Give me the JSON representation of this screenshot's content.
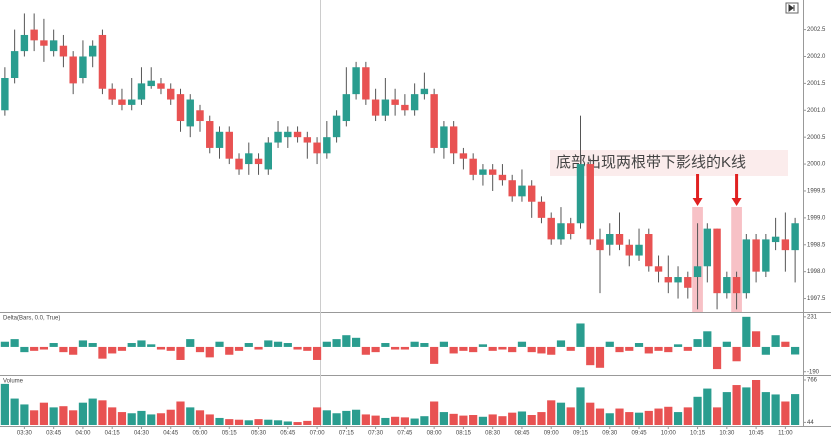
{
  "chart_data": [
    {
      "type": "candlestick",
      "categories": [
        null,
        null,
        "03:30",
        null,
        null,
        "03:45",
        null,
        null,
        "04:00",
        null,
        null,
        "04:15",
        null,
        null,
        "04:30",
        null,
        null,
        "04:45",
        null,
        null,
        "05:00",
        null,
        null,
        "05:15",
        null,
        null,
        "05:30",
        null,
        null,
        "05:45",
        null,
        null,
        "07:00",
        null,
        null,
        "07:15",
        null,
        null,
        "07:30",
        null,
        null,
        "07:45",
        null,
        null,
        "08:00",
        null,
        null,
        "08:15",
        null,
        null,
        "08:30",
        null,
        null,
        "08:45",
        null,
        null,
        "09:00",
        null,
        null,
        "09:15",
        null,
        null,
        "09:30",
        null,
        null,
        "09:45",
        null,
        null,
        "10:00",
        null,
        null,
        "10:15",
        null,
        null,
        "10:30",
        null,
        null,
        "10:45",
        null,
        null,
        "11:00",
        null
      ],
      "open": [
        2001.0,
        2001.6,
        2002.1,
        2002.5,
        2002.3,
        2002.1,
        2002.2,
        2002.0,
        2001.6,
        2002.0,
        2002.4,
        2001.4,
        2001.2,
        2001.1,
        2001.2,
        2001.45,
        2001.5,
        2001.4,
        2001.3,
        2000.7,
        2001.0,
        2000.8,
        2000.3,
        2000.6,
        2000.1,
        2000.0,
        2000.1,
        1999.9,
        2000.4,
        2000.5,
        2000.6,
        2000.5,
        2000.4,
        2000.2,
        2000.5,
        2000.8,
        2001.3,
        2001.8,
        2001.2,
        2000.9,
        2001.2,
        2001.1,
        2001.0,
        2001.3,
        2001.3,
        2000.3,
        2000.7,
        2000.2,
        2000.1,
        1999.8,
        1999.9,
        1999.8,
        1999.7,
        1999.4,
        1999.6,
        1999.3,
        1999.0,
        1998.6,
        1998.9,
        1998.9,
        2000.0,
        1998.6,
        1998.5,
        1998.7,
        1998.5,
        1998.3,
        1998.7,
        1998.1,
        1997.9,
        1997.8,
        1997.9,
        1997.9,
        1998.1,
        1998.8,
        1997.6,
        1997.9,
        1997.6,
        1998.6,
        1998.0,
        1998.55,
        1998.6,
        1998.4
      ],
      "high": [
        2001.8,
        2002.5,
        2002.8,
        2002.8,
        2002.7,
        2002.5,
        2002.4,
        2002.1,
        2002.3,
        2002.3,
        2002.5,
        2001.5,
        2001.4,
        2001.6,
        2001.8,
        2001.8,
        2001.6,
        2001.5,
        2001.4,
        2001.3,
        2001.1,
        2000.9,
        2000.7,
        2000.7,
        2000.2,
        2000.4,
        2000.2,
        2000.5,
        2000.8,
        2000.7,
        2000.7,
        2000.6,
        2000.5,
        2000.8,
        2001.0,
        2001.8,
        2001.9,
        2001.9,
        2001.4,
        2001.6,
        2001.4,
        2001.3,
        2001.5,
        2001.7,
        2001.4,
        2000.8,
        2000.8,
        2000.3,
        2000.2,
        2000.0,
        2000.0,
        2000.0,
        1999.8,
        1999.9,
        1999.7,
        1999.4,
        1999.1,
        1999.2,
        1999.0,
        2000.9,
        2000.1,
        1998.8,
        1998.9,
        1999.1,
        1998.6,
        1998.8,
        1998.8,
        1998.3,
        1998.3,
        1998.1,
        1998.0,
        1998.9,
        1998.9,
        1998.8,
        1998.0,
        1998.0,
        1998.7,
        1998.7,
        1998.7,
        1999.0,
        1999.1,
        1999.0
      ],
      "low": [
        2000.9,
        2001.5,
        2002.0,
        2002.1,
        2001.9,
        2002.0,
        2001.8,
        2001.3,
        2001.5,
        2001.8,
        2001.3,
        2001.1,
        2001.0,
        2001.0,
        2001.1,
        2001.4,
        2001.3,
        2001.1,
        2000.6,
        2000.5,
        2000.6,
        2000.2,
        2000.1,
        2000.0,
        1999.8,
        1999.8,
        1999.8,
        1999.8,
        2000.3,
        2000.3,
        2000.4,
        2000.1,
        2000.0,
        2000.1,
        2000.4,
        2000.7,
        2001.2,
        2001.1,
        2000.8,
        2000.8,
        2000.9,
        2000.9,
        2000.9,
        2001.2,
        2000.2,
        2000.1,
        2000.0,
        1999.9,
        1999.7,
        1999.6,
        1999.5,
        1999.6,
        1999.3,
        1999.3,
        1999.0,
        1998.9,
        1998.5,
        1998.5,
        1998.6,
        1998.8,
        1998.5,
        1997.6,
        1998.3,
        1998.4,
        1998.1,
        1998.2,
        1998.0,
        1997.8,
        1997.6,
        1997.5,
        1997.5,
        1997.3,
        1997.8,
        1997.3,
        1997.5,
        1997.3,
        1997.5,
        1997.8,
        1997.9,
        1998.4,
        1998.0,
        1997.8
      ],
      "close": [
        2001.6,
        2002.1,
        2002.4,
        2002.3,
        2002.2,
        2002.3,
        2002.0,
        2001.5,
        2002.0,
        2002.2,
        2001.4,
        2001.2,
        2001.1,
        2001.2,
        2001.5,
        2001.55,
        2001.4,
        2001.2,
        2000.8,
        2001.2,
        2000.8,
        2000.3,
        2000.6,
        2000.1,
        1999.9,
        2000.2,
        2000.0,
        2000.4,
        2000.6,
        2000.6,
        2000.5,
        2000.4,
        2000.2,
        2000.5,
        2000.9,
        2001.3,
        2001.8,
        2001.2,
        2000.9,
        2001.2,
        2001.1,
        2001.0,
        2001.3,
        2001.4,
        2000.3,
        2000.7,
        2000.2,
        2000.1,
        1999.8,
        1999.9,
        1999.8,
        1999.7,
        1999.4,
        1999.6,
        1999.3,
        1999.0,
        1998.6,
        1998.9,
        1998.7,
        2000.0,
        1998.6,
        1998.4,
        1998.7,
        1998.5,
        1998.3,
        1998.5,
        1998.1,
        1998.0,
        1997.8,
        1997.9,
        1997.7,
        1998.1,
        1998.8,
        1997.6,
        1997.9,
        1997.6,
        1998.6,
        1998.0,
        1998.6,
        1998.65,
        1998.4,
        1998.9
      ],
      "up_color": "#2a9d8f",
      "down_color": "#e85252",
      "ylim": [
        1997.25,
        2003.05
      ],
      "yticks": [
        2002.5,
        {
          "value": 2002.0,
          "label": "2002.0"
        },
        2001.5,
        {
          "value": 2001.0,
          "label": "2001.0"
        },
        2000.5,
        {
          "value": 2000.0,
          "label": "2000.0"
        },
        1999.5,
        {
          "value": 1999.0,
          "label": "1999.0"
        },
        1998.5,
        {
          "value": 1998.0,
          "label": "1998.0"
        },
        1997.5
      ],
      "annotation": {
        "text": "底部出现两根带下影线的K线",
        "bars": [
          71,
          75
        ],
        "color": "#e02020"
      }
    },
    {
      "type": "bar",
      "title": "Delta(Bars, 0.0, True)",
      "values": [
        40,
        60,
        -40,
        -30,
        -20,
        30,
        -40,
        -60,
        50,
        30,
        -90,
        -50,
        -30,
        30,
        50,
        20,
        -20,
        -30,
        -100,
        60,
        -40,
        -80,
        40,
        -60,
        -30,
        30,
        -20,
        50,
        40,
        30,
        -20,
        -30,
        -100,
        40,
        60,
        90,
        70,
        -60,
        -40,
        30,
        -20,
        -20,
        40,
        30,
        -130,
        40,
        -50,
        -30,
        -40,
        20,
        -30,
        -20,
        -40,
        40,
        -40,
        -50,
        -60,
        50,
        -30,
        180,
        -140,
        -160,
        40,
        -40,
        -30,
        30,
        -50,
        -30,
        -40,
        20,
        -30,
        60,
        120,
        -170,
        40,
        -110,
        231,
        120,
        -60,
        90,
        40,
        -58
      ],
      "ylim": [
        -200,
        245
      ],
      "yticks": [
        231,
        -190
      ]
    },
    {
      "type": "bar",
      "title": "Volume",
      "values": [
        700,
        450,
        350,
        250,
        380,
        300,
        320,
        250,
        380,
        450,
        420,
        300,
        220,
        200,
        240,
        180,
        200,
        260,
        400,
        300,
        250,
        180,
        120,
        100,
        90,
        80,
        100,
        90,
        80,
        60,
        50,
        70,
        300,
        250,
        200,
        240,
        260,
        180,
        160,
        120,
        140,
        130,
        110,
        150,
        400,
        220,
        190,
        160,
        170,
        140,
        180,
        150,
        210,
        230,
        170,
        220,
        420,
        380,
        300,
        640,
        380,
        280,
        200,
        280,
        220,
        210,
        240,
        280,
        310,
        220,
        300,
        480,
        620,
        300,
        560,
        680,
        640,
        766,
        560,
        520,
        400,
        526
      ],
      "ylim": [
        0,
        800
      ],
      "yticks": [
        44,
        766
      ]
    }
  ]
}
